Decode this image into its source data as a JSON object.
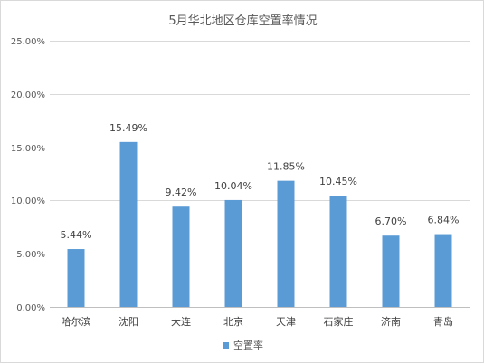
{
  "chart_data": {
    "type": "bar",
    "title": "5月华北地区仓库空置率情况",
    "categories": [
      "哈尔滨",
      "沈阳",
      "大连",
      "北京",
      "天津",
      "石家庄",
      "济南",
      "青岛"
    ],
    "series": [
      {
        "name": "空置率",
        "values": [
          5.44,
          15.49,
          9.42,
          10.04,
          11.85,
          10.45,
          6.7,
          6.84
        ],
        "data_labels": [
          "5.44%",
          "15.49%",
          "9.42%",
          "10.04%",
          "11.85%",
          "10.45%",
          "6.70%",
          "6.84%"
        ],
        "color": "#5b9bd5"
      }
    ],
    "ylim": [
      0,
      25
    ],
    "yticks": [
      0,
      5,
      10,
      15,
      20,
      25
    ],
    "ytick_labels": [
      "0.00%",
      "5.00%",
      "10.00%",
      "15.00%",
      "20.00%",
      "25.00%"
    ],
    "xlabel": "",
    "ylabel": "",
    "grid": true,
    "legend_position": "bottom"
  }
}
